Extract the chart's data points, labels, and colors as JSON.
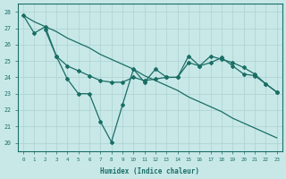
{
  "bg_color": "#c8e8e8",
  "grid_color": "#b0d4d4",
  "line_color": "#1a6e66",
  "xlabel": "Humidex (Indice chaleur)",
  "xlim": [
    -0.5,
    23.5
  ],
  "ylim": [
    19.5,
    28.5
  ],
  "yticks": [
    20,
    21,
    22,
    23,
    24,
    25,
    26,
    27,
    28
  ],
  "xticks": [
    0,
    1,
    2,
    3,
    4,
    5,
    6,
    7,
    8,
    9,
    10,
    11,
    12,
    13,
    14,
    15,
    16,
    17,
    18,
    19,
    20,
    21,
    22,
    23
  ],
  "line1_x": [
    0,
    1,
    2,
    3,
    4,
    5,
    6,
    7,
    8,
    9,
    10,
    11,
    12,
    13,
    14,
    15,
    16,
    17,
    18,
    19,
    20,
    21,
    22,
    23
  ],
  "line1_y": [
    27.8,
    27.4,
    27.1,
    26.8,
    26.4,
    26.1,
    25.8,
    25.4,
    25.1,
    24.8,
    24.5,
    24.1,
    23.8,
    23.5,
    23.2,
    22.8,
    22.5,
    22.2,
    21.9,
    21.5,
    21.2,
    20.9,
    20.6,
    20.3
  ],
  "line2_x": [
    0,
    1,
    2,
    3,
    4,
    5,
    6,
    7,
    8,
    9,
    10,
    11,
    12,
    13,
    14,
    15,
    16,
    17,
    18,
    19,
    20,
    21,
    22,
    23
  ],
  "line2_y": [
    27.8,
    26.7,
    27.1,
    25.3,
    23.9,
    23.0,
    23.0,
    21.3,
    20.05,
    22.3,
    24.5,
    23.7,
    24.5,
    24.0,
    24.0,
    25.3,
    24.7,
    24.9,
    25.2,
    24.7,
    24.2,
    24.1,
    23.6,
    23.1
  ],
  "line3_x": [
    2,
    3,
    4,
    5,
    6,
    7,
    8,
    9,
    10,
    11,
    12,
    13,
    14,
    15,
    16,
    17,
    18,
    19,
    20,
    21,
    22,
    23
  ],
  "line3_y": [
    26.9,
    25.3,
    24.7,
    24.4,
    24.1,
    23.8,
    23.7,
    23.7,
    24.0,
    23.8,
    23.9,
    24.0,
    24.0,
    24.9,
    24.7,
    25.3,
    25.1,
    24.9,
    24.6,
    24.2,
    23.6,
    23.1
  ]
}
